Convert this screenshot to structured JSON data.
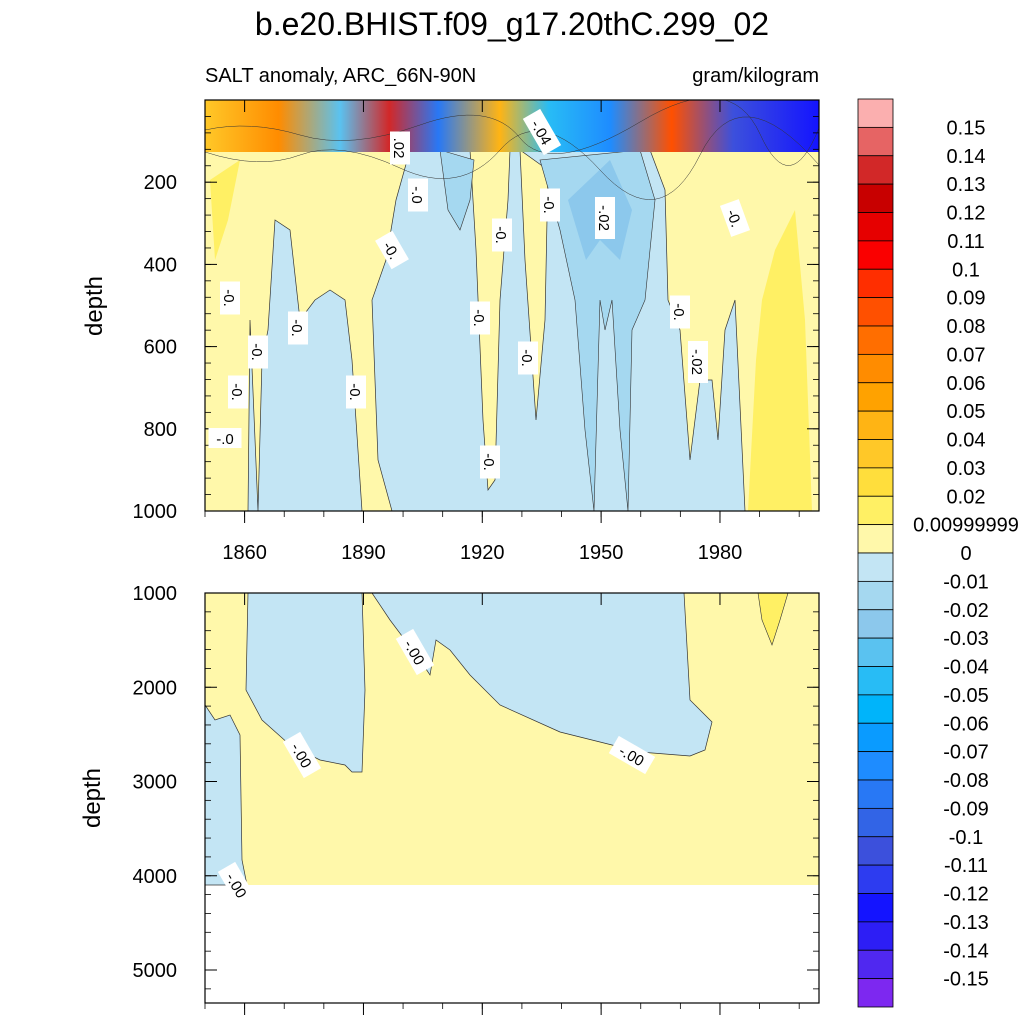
{
  "title": "b.e20.BHIST.f09_g17.20thC.299_02",
  "chart_data": {
    "type": "heatmap",
    "variable_label": "SALT anomaly, ARC_66N-90N",
    "units": "gram/kilogram",
    "x_ticks": [
      1860,
      1890,
      1920,
      1950,
      1980
    ],
    "x_range": [
      1850,
      2005
    ],
    "top_panel": {
      "ylabel": "depth",
      "ylim": [
        0,
        1000
      ],
      "y_ticks": [
        200,
        400,
        600,
        800,
        1000
      ],
      "inverted": true
    },
    "bottom_panel": {
      "ylabel": "depth",
      "ylim": [
        1000,
        5350
      ],
      "y_ticks": [
        1000,
        2000,
        3000,
        4000,
        5000
      ],
      "inverted": true,
      "data_bottom_depth": 4130
    },
    "contour_labels_top": [
      "-.0",
      "-0.",
      "-0.",
      "-0.",
      "-0.",
      "-0.",
      "-0.",
      "-.0",
      "-0.",
      "-0.",
      "-0.",
      "-.02",
      "-0.",
      ".02",
      "-.04",
      "-0.",
      "-0.",
      "-.02",
      "-0.",
      "-0.",
      "-0."
    ],
    "contour_labels_bottom": [
      "-.00",
      "-.00",
      "-.00",
      "-.00"
    ],
    "colorbar": {
      "labels": [
        "0.15",
        "0.14",
        "0.13",
        "0.12",
        "0.11",
        "0.1",
        "0.09",
        "0.08",
        "0.07",
        "0.06",
        "0.05",
        "0.04",
        "0.03",
        "0.02",
        "0.00999999",
        "0",
        "-0.01",
        "-0.02",
        "-0.03",
        "-0.04",
        "-0.05",
        "-0.06",
        "-0.07",
        "-0.08",
        "-0.09",
        "-0.1",
        "-0.11",
        "-0.12",
        "-0.13",
        "-0.14",
        "-0.15"
      ],
      "colors": [
        "#fbafaf",
        "#e66464",
        "#d22828",
        "#c80000",
        "#e60000",
        "#fa0000",
        "#ff2e00",
        "#ff5000",
        "#ff6e00",
        "#ff8c00",
        "#ffa200",
        "#ffb414",
        "#ffc828",
        "#ffde3c",
        "#fff064",
        "#fff8aa",
        "#c3e5f4",
        "#a5d8f0",
        "#8cc8ec",
        "#5ac2f0",
        "#28bcf5",
        "#00b4fa",
        "#0a9bff",
        "#1e8cff",
        "#2878f5",
        "#3264e6",
        "#3c50dc",
        "#2d3cf0",
        "#1414ff",
        "#2d1ef5",
        "#5028f0",
        "#7d28f0"
      ]
    },
    "anomaly_value_scale": [
      -0.15,
      0.15
    ]
  }
}
